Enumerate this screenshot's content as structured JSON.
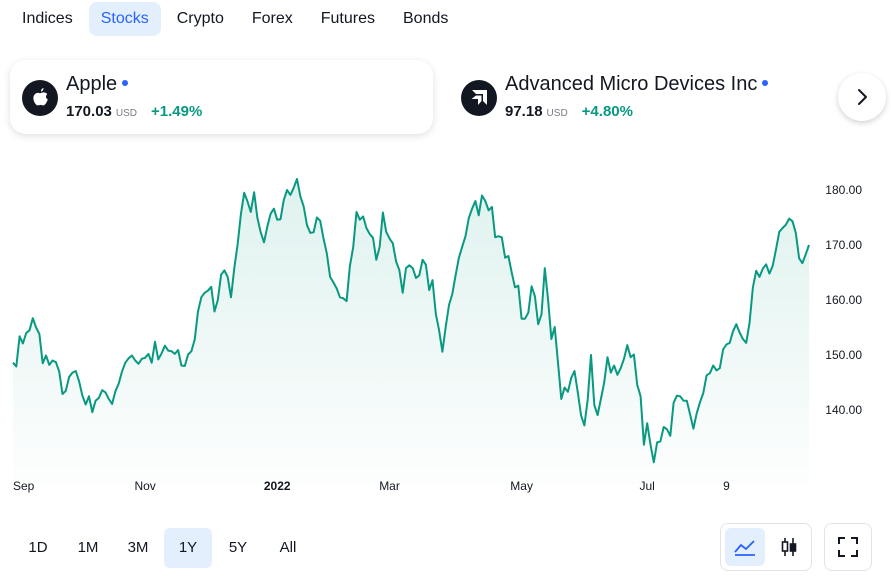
{
  "tabs": [
    {
      "label": "Indices",
      "active": false
    },
    {
      "label": "Stocks",
      "active": true
    },
    {
      "label": "Crypto",
      "active": false
    },
    {
      "label": "Forex",
      "active": false
    },
    {
      "label": "Futures",
      "active": false
    },
    {
      "label": "Bonds",
      "active": false
    }
  ],
  "symbols": [
    {
      "name": "Apple",
      "price": "170.03",
      "currency": "USD",
      "change": "+1.49%",
      "logo_icon": "apple-logo-icon",
      "selected": true
    },
    {
      "name": "Advanced Micro Devices Inc",
      "price": "97.18",
      "currency": "USD",
      "change": "+4.80%",
      "logo_icon": "amd-logo-icon",
      "selected": false
    }
  ],
  "next_icon": "chevron-right-icon",
  "colors": {
    "accent": "#2962ff",
    "line": "#089981",
    "positive": "#089981",
    "active_bg": "#e3effd"
  },
  "ranges": [
    {
      "label": "1D",
      "active": false
    },
    {
      "label": "1M",
      "active": false
    },
    {
      "label": "3M",
      "active": false
    },
    {
      "label": "1Y",
      "active": true
    },
    {
      "label": "5Y",
      "active": false
    },
    {
      "label": "All",
      "active": false
    }
  ],
  "chart_type_icons": [
    "area-chart-icon",
    "candlestick-chart-icon"
  ],
  "fullscreen_icon": "fullscreen-icon",
  "chart_data": {
    "type": "area",
    "x_labels": [
      "Sep",
      "Nov",
      "2022",
      "Mar",
      "May",
      "Jul",
      "9"
    ],
    "x_label_positions": [
      0,
      40,
      80,
      114,
      154,
      192,
      216
    ],
    "y_ticks": [
      "180.00",
      "170.00",
      "160.00",
      "150.00",
      "140.00"
    ],
    "ylim": [
      128,
      184
    ],
    "grid": false,
    "series": [
      {
        "values": [
          148.6,
          147.9,
          153.4,
          152.1,
          154.0,
          154.5,
          156.7,
          155.0,
          153.8,
          148.5,
          149.9,
          148.2,
          149.0,
          148.7,
          147.0,
          142.9,
          143.5,
          146.0,
          146.8,
          147.1,
          145.2,
          142.6,
          141.0,
          142.5,
          139.6,
          141.7,
          142.2,
          143.6,
          143.2,
          142.0,
          141.1,
          143.4,
          144.8,
          147.0,
          148.6,
          149.4,
          149.9,
          149.0,
          148.4,
          149.3,
          149.5,
          150.2,
          148.6,
          152.4,
          149.2,
          150.3,
          151.7,
          150.8,
          150.7,
          150.2,
          150.9,
          148.1,
          148.0,
          150.1,
          150.7,
          152.8,
          157.9,
          160.5,
          161.3,
          161.7,
          162.4,
          157.9,
          160.0,
          164.6,
          165.4,
          164.2,
          160.5,
          165.8,
          170.1,
          175.6,
          179.5,
          177.9,
          176.0,
          179.6,
          174.9,
          172.3,
          170.5,
          173.3,
          175.7,
          176.6,
          174.6,
          174.7,
          178.2,
          180.0,
          179.1,
          180.4,
          182.0,
          178.8,
          177.0,
          173.6,
          172.2,
          172.3,
          175.0,
          174.4,
          171.2,
          168.5,
          164.2,
          163.2,
          162.1,
          160.5,
          160.3,
          159.8,
          166.2,
          169.6,
          176.0,
          174.6,
          175.2,
          173.1,
          172.0,
          171.3,
          167.3,
          169.6,
          175.9,
          172.4,
          171.2,
          170.3,
          167.0,
          165.4,
          161.3,
          165.8,
          166.3,
          165.8,
          164.0,
          164.5,
          167.3,
          166.4,
          161.8,
          163.6,
          157.5,
          154.5,
          150.6,
          155.1,
          159.1,
          161.1,
          164.5,
          167.7,
          169.7,
          171.6,
          174.9,
          176.6,
          178.0,
          175.4,
          179.0,
          178.0,
          176.3,
          176.9,
          171.4,
          171.6,
          171.4,
          167.7,
          168.0,
          165.0,
          162.3,
          162.6,
          156.6,
          156.6,
          157.7,
          162.5,
          160.7,
          155.6,
          157.4,
          165.8,
          160.0,
          152.9,
          155.1,
          148.6,
          142.0,
          144.1,
          143.3,
          145.8,
          147.1,
          143.2,
          139.0,
          137.2,
          141.9,
          150.0,
          140.9,
          139.1,
          142.0,
          145.0,
          149.6,
          146.8,
          148.1,
          146.4,
          147.6,
          149.3,
          151.8,
          149.6,
          150.1,
          144.6,
          142.5,
          133.7,
          137.6,
          133.7,
          130.5,
          134.1,
          134.3,
          136.9,
          136.5,
          135.3,
          141.3,
          142.6,
          142.5,
          141.7,
          141.7,
          139.2,
          136.6,
          139.4,
          141.4,
          143.1,
          146.3,
          146.7,
          148.1,
          147.2,
          147.6,
          151.0,
          151.9,
          152.2,
          154.3,
          155.6,
          154.1,
          152.9,
          152.2,
          155.8,
          162.3,
          165.3,
          164.2,
          165.7,
          166.5,
          164.8,
          166.2,
          169.2,
          172.4,
          173.1,
          173.7,
          174.8,
          174.3,
          172.2,
          167.6,
          166.7,
          168.3,
          170.0
        ]
      }
    ]
  }
}
